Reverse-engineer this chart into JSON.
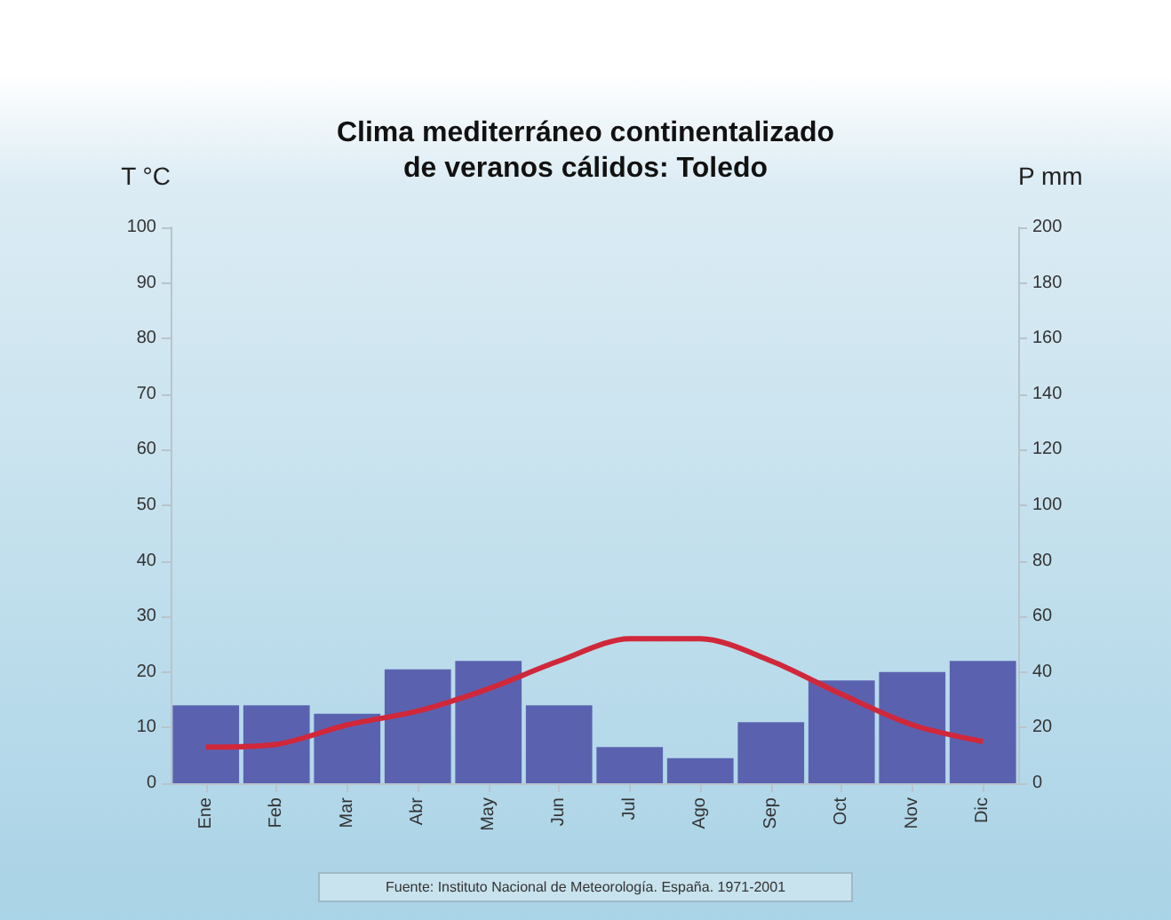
{
  "chart_data": {
    "type": "bar",
    "title": "Clima mediterráneo continentalizado\nde veranos cálidos: Toledo",
    "ylabel": "T °C",
    "y2label": "P mm",
    "categories": [
      "Ene",
      "Feb",
      "Mar",
      "Abr",
      "May",
      "Jun",
      "Jul",
      "Ago",
      "Sep",
      "Oct",
      "Nov",
      "Dic"
    ],
    "series": [
      {
        "axis": "y2",
        "color": "#5a62b0",
        "values": [
          28,
          28,
          25,
          41,
          44,
          28,
          13,
          9,
          22,
          37,
          40,
          44
        ]
      },
      {
        "type": "line",
        "color": "#d0283a",
        "values": [
          6.5,
          7,
          10.5,
          13,
          17,
          22,
          26,
          26,
          22,
          16,
          10.5,
          7.5
        ]
      }
    ],
    "ylim": [
      0,
      100
    ],
    "yticks": [
      0,
      10,
      20,
      30,
      40,
      50,
      60,
      70,
      80,
      90,
      100
    ],
    "y2lim": [
      0,
      200
    ],
    "y2ticks": [
      0,
      20,
      40,
      60,
      80,
      100,
      120,
      140,
      160,
      180,
      200
    ],
    "annotations": [
      "Fuente: Instituto Nacional de Meteorología. España. 1971-2001"
    ],
    "grid": false,
    "marker": "none",
    "line_style": "solid"
  }
}
